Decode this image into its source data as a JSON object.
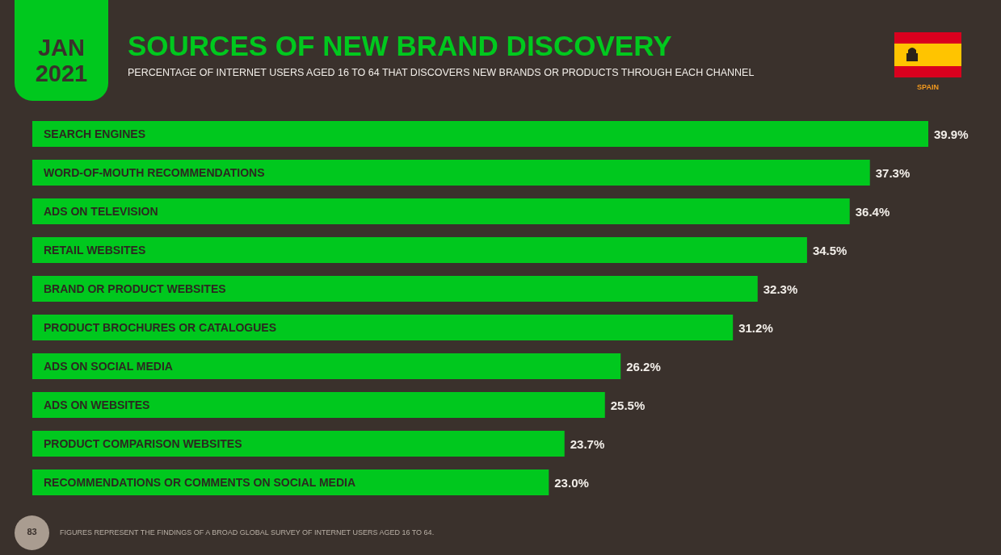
{
  "chart_data": {
    "type": "bar",
    "orientation": "horizontal",
    "title": "SOURCES OF NEW BRAND DISCOVERY",
    "subtitle": "PERCENTAGE OF INTERNET USERS AGED 16 TO 64 THAT DISCOVERS NEW BRANDS OR PRODUCTS THROUGH EACH CHANNEL",
    "categories": [
      "SEARCH ENGINES",
      "WORD-OF-MOUTH RECOMMENDATIONS",
      "ADS ON TELEVISION",
      "RETAIL WEBSITES",
      "BRAND OR PRODUCT WEBSITES",
      "PRODUCT BROCHURES OR CATALOGUES",
      "ADS ON SOCIAL MEDIA",
      "ADS ON WEBSITES",
      "PRODUCT COMPARISON WEBSITES",
      "RECOMMENDATIONS OR COMMENTS ON SOCIAL MEDIA"
    ],
    "values": [
      39.9,
      37.3,
      36.4,
      34.5,
      32.3,
      31.2,
      26.2,
      25.5,
      23.7,
      23.0
    ],
    "value_labels": [
      "39.9%",
      "37.3%",
      "36.4%",
      "34.5%",
      "32.3%",
      "31.2%",
      "26.2%",
      "25.5%",
      "23.7%",
      "23.0%"
    ],
    "color": "#00c81e",
    "annotations": [
      "JAN 2021",
      "SPAIN",
      "83",
      "FIGURES REPRESENT THE FINDINGS OF A BROAD GLOBAL SURVEY OF INTERNET USERS AGED 16 TO 64."
    ]
  }
}
